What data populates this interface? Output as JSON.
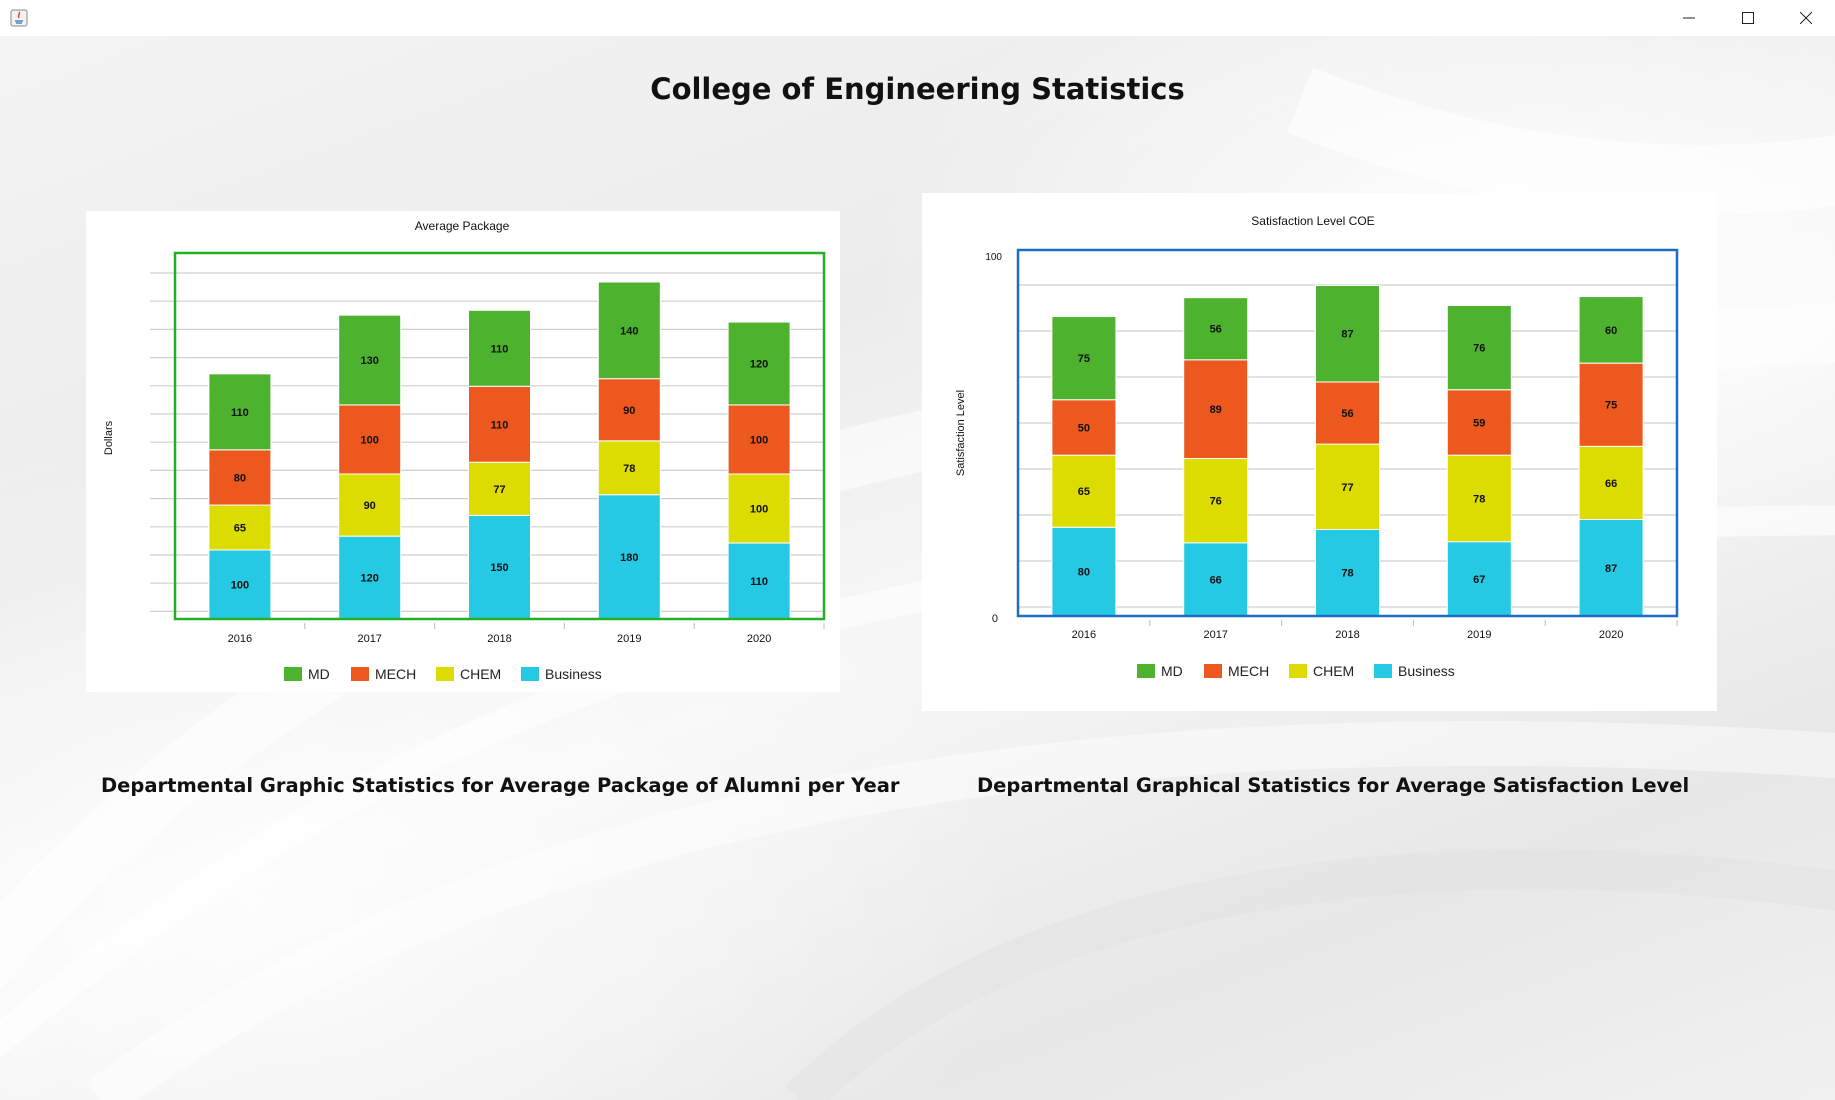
{
  "window": {
    "title": ""
  },
  "page": {
    "heading": "College of Engineering Statistics",
    "caption_left": "Departmental Graphic Statistics for Average Package of Alumni per Year",
    "caption_right": "Departmental Graphical Statistics for Average Satisfaction Level"
  },
  "colors": {
    "MD": "#4db32f",
    "MECH": "#ec581e",
    "CHEM": "#dcdc00",
    "Business": "#26c9e3",
    "left_frame": "#22b026",
    "right_frame": "#1a6cc4"
  },
  "chart_data": [
    {
      "type": "bar",
      "stacked": true,
      "title": "Average Package",
      "xlabel": "",
      "ylabel": "Dollars",
      "categories": [
        "2016",
        "2017",
        "2018",
        "2019",
        "2020"
      ],
      "series": [
        {
          "name": "Business",
          "values": [
            100,
            120,
            150,
            180,
            110
          ]
        },
        {
          "name": "CHEM",
          "values": [
            65,
            90,
            77,
            78,
            100
          ]
        },
        {
          "name": "MECH",
          "values": [
            80,
            100,
            110,
            90,
            100
          ]
        },
        {
          "name": "MD",
          "values": [
            110,
            130,
            110,
            140,
            120
          ]
        }
      ],
      "legend": [
        "MD",
        "MECH",
        "CHEM",
        "Business"
      ],
      "legend_position": "bottom",
      "ylim": [
        0,
        530
      ],
      "grid": true
    },
    {
      "type": "bar",
      "stacked": true,
      "title": "Satisfaction Level COE",
      "xlabel": "",
      "ylabel": "Satisfaction Level",
      "categories": [
        "2016",
        "2017",
        "2018",
        "2019",
        "2020"
      ],
      "series": [
        {
          "name": "Business",
          "values": [
            80,
            66,
            78,
            67,
            87
          ]
        },
        {
          "name": "CHEM",
          "values": [
            65,
            76,
            77,
            78,
            66
          ]
        },
        {
          "name": "MECH",
          "values": [
            50,
            89,
            56,
            59,
            75
          ]
        },
        {
          "name": "MD",
          "values": [
            75,
            56,
            87,
            76,
            60
          ]
        }
      ],
      "legend": [
        "MD",
        "MECH",
        "CHEM",
        "Business"
      ],
      "legend_position": "bottom",
      "yticks": [
        "0",
        "100"
      ],
      "ylim": [
        0,
        330
      ],
      "grid": true
    }
  ]
}
